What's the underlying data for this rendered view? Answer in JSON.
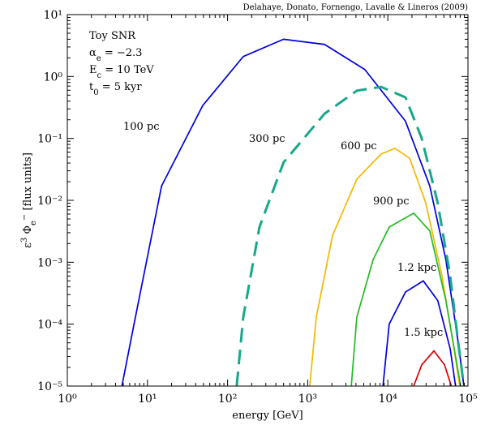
{
  "chart_data": {
    "type": "line",
    "log_x": true,
    "log_y": true,
    "credit": "Delahaye, Donato, Fornengo, Lavalle & Lineros (2009)",
    "xlabel": "energy [GeV]",
    "ylabel": [
      {
        "t": "ε"
      },
      {
        "t": "3",
        "shift": "sup"
      },
      {
        "t": " Φ"
      },
      {
        "t": "e",
        "shift": "sub"
      },
      {
        "t": "−",
        "shift": "sup"
      },
      {
        "t": " [flux units]"
      }
    ],
    "info": [
      [
        {
          "t": "Toy SNR"
        }
      ],
      [
        {
          "t": "α"
        },
        {
          "t": "e",
          "shift": "sub"
        },
        {
          "t": " = −2.3"
        }
      ],
      [
        {
          "t": "E"
        },
        {
          "t": "c",
          "shift": "sub"
        },
        {
          "t": " = 10 TeV"
        }
      ],
      [
        {
          "t": "t"
        },
        {
          "t": "0",
          "shift": "sub"
        },
        {
          "t": " = 5 kyr"
        }
      ]
    ],
    "xlim": [
      1,
      100000
    ],
    "ylim": [
      1e-05,
      10
    ],
    "xticks": [
      {
        "value": 1,
        "label": "10⁰"
      },
      {
        "value": 10,
        "label": "10¹"
      },
      {
        "value": 100,
        "label": "10²"
      },
      {
        "value": 1000,
        "label": "10³"
      },
      {
        "value": 10000,
        "label": "10⁴"
      },
      {
        "value": 100000,
        "label": "10⁵"
      }
    ],
    "yticks": [
      {
        "value": 1e-05,
        "label": "10⁻⁵"
      },
      {
        "value": 0.0001,
        "label": "10⁻⁴"
      },
      {
        "value": 0.001,
        "label": "10⁻³"
      },
      {
        "value": 0.01,
        "label": "10⁻²"
      },
      {
        "value": 0.1,
        "label": "10⁻¹"
      },
      {
        "value": 1,
        "label": "10⁰"
      },
      {
        "value": 10,
        "label": "10¹"
      }
    ],
    "series": [
      {
        "name": "100 pc",
        "color": "#0000dd",
        "dashed": false,
        "x": [
          4.8,
          6.8,
          15,
          49,
          157,
          500,
          1620,
          5150,
          16600,
          33400,
          53000,
          75000,
          89000
        ],
        "values": [
          1e-05,
          0.0001,
          0.017,
          0.34,
          2.1,
          4.0,
          3.3,
          1.3,
          0.19,
          0.017,
          0.0011,
          5.4e-05,
          1e-05
        ]
      },
      {
        "name": "300 pc",
        "color": "#17a88a",
        "dashed": true,
        "x": [
          130,
          157,
          250,
          500,
          1620,
          4100,
          8250,
          16600,
          26500,
          42000,
          60000,
          75000,
          89000
        ],
        "values": [
          1e-05,
          0.00013,
          0.0037,
          0.041,
          0.25,
          0.59,
          0.68,
          0.46,
          0.1,
          0.009,
          0.0006,
          5.4e-05,
          1e-05
        ]
      },
      {
        "name": "600 pc",
        "color": "#f5b800",
        "dashed": false,
        "x": [
          1060,
          1280,
          2040,
          4100,
          8250,
          12300,
          18700,
          29800,
          47400,
          67000,
          79000
        ],
        "values": [
          1e-05,
          0.00013,
          0.0027,
          0.022,
          0.056,
          0.069,
          0.048,
          0.009,
          0.0006,
          4e-05,
          1e-05
        ]
      },
      {
        "name": "900 pc",
        "color": "#22bb22",
        "dashed": false,
        "x": [
          3500,
          4100,
          6550,
          10400,
          21000,
          33400,
          53000,
          70000,
          81000
        ],
        "values": [
          1e-05,
          0.00013,
          0.0011,
          0.0037,
          0.0062,
          0.0032,
          0.00024,
          3e-05,
          1e-05
        ]
      },
      {
        "name": "1.2 kpc",
        "color": "#0000dd",
        "dashed": false,
        "x": [
          8700,
          10400,
          16600,
          27700,
          42000,
          60000,
          70000
        ],
        "values": [
          1e-05,
          0.0001,
          0.00033,
          0.0005,
          0.00024,
          4e-05,
          1e-05
        ]
      },
      {
        "name": "1.5 kpc",
        "color": "#dd0000",
        "dashed": false,
        "x": [
          21000,
          26500,
          37600,
          51000,
          62000
        ],
        "values": [
          1e-05,
          2.2e-05,
          3.7e-05,
          2.2e-05,
          1e-05
        ]
      }
    ]
  }
}
